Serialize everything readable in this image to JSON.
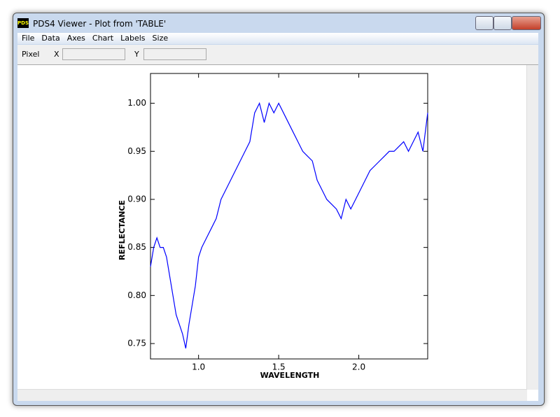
{
  "window": {
    "title": "PDS4 Viewer - Plot from 'TABLE'",
    "icon_label": "PDS"
  },
  "menu": [
    "File",
    "Data",
    "Axes",
    "Chart",
    "Labels",
    "Size"
  ],
  "toolbar": {
    "label": "Pixel",
    "x_label": "X",
    "y_label": "Y"
  },
  "chart_data": {
    "type": "line",
    "x_label": "WAVELENGTH",
    "y_label": "REFLECTANCE",
    "xlim": [
      0.7,
      2.43
    ],
    "ylim": [
      0.734,
      1.031
    ],
    "xticks": [
      {
        "value": 1.0,
        "label": "1.0"
      },
      {
        "value": 1.5,
        "label": "1.5"
      },
      {
        "value": 2.0,
        "label": "2.0"
      }
    ],
    "yticks": [
      {
        "value": 0.75,
        "label": "0.75"
      },
      {
        "value": 0.8,
        "label": "0.80"
      },
      {
        "value": 0.85,
        "label": "0.85"
      },
      {
        "value": 0.9,
        "label": "0.90"
      },
      {
        "value": 0.95,
        "label": "0.95"
      },
      {
        "value": 1.0,
        "label": "1.00"
      }
    ],
    "x": [
      0.7,
      0.72,
      0.74,
      0.76,
      0.78,
      0.8,
      0.82,
      0.84,
      0.86,
      0.88,
      0.9,
      0.92,
      0.94,
      0.96,
      0.98,
      1.0,
      1.02,
      1.05,
      1.08,
      1.11,
      1.14,
      1.17,
      1.2,
      1.23,
      1.26,
      1.29,
      1.32,
      1.35,
      1.38,
      1.41,
      1.44,
      1.47,
      1.5,
      1.53,
      1.56,
      1.59,
      1.62,
      1.65,
      1.68,
      1.71,
      1.74,
      1.77,
      1.8,
      1.83,
      1.86,
      1.89,
      1.92,
      1.95,
      1.98,
      2.01,
      2.04,
      2.07,
      2.1,
      2.13,
      2.16,
      2.19,
      2.22,
      2.25,
      2.28,
      2.31,
      2.34,
      2.37,
      2.4,
      2.43
    ],
    "series": [
      {
        "color": "#0000ff",
        "values": [
          0.83,
          0.85,
          0.86,
          0.85,
          0.85,
          0.84,
          0.82,
          0.8,
          0.78,
          0.77,
          0.76,
          0.745,
          0.77,
          0.79,
          0.81,
          0.84,
          0.85,
          0.86,
          0.87,
          0.88,
          0.9,
          0.91,
          0.92,
          0.93,
          0.94,
          0.95,
          0.96,
          0.99,
          1.0,
          0.98,
          1.0,
          0.99,
          1.0,
          0.99,
          0.98,
          0.97,
          0.96,
          0.95,
          0.945,
          0.94,
          0.92,
          0.91,
          0.9,
          0.895,
          0.89,
          0.88,
          0.9,
          0.89,
          0.9,
          0.91,
          0.92,
          0.93,
          0.935,
          0.94,
          0.945,
          0.95,
          0.95,
          0.955,
          0.96,
          0.95,
          0.96,
          0.97,
          0.95,
          0.99
        ]
      }
    ]
  }
}
